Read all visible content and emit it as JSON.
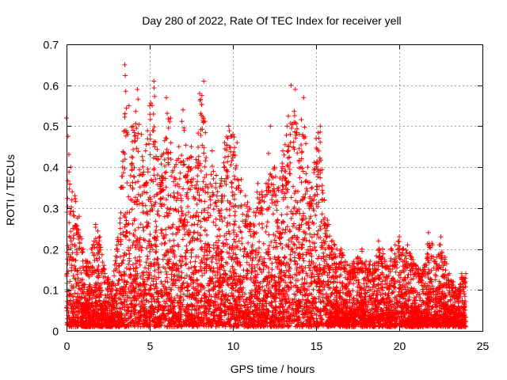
{
  "chart_data": {
    "type": "scatter",
    "title": "Day 280 of 2022, Rate Of TEC Index for receiver yell",
    "xlabel": "GPS time / hours",
    "ylabel": "ROTI / TECUs",
    "xlim": [
      0,
      25
    ],
    "ylim": [
      0,
      0.7
    ],
    "xticks": [
      "0",
      "5",
      "10",
      "15",
      "20",
      "25"
    ],
    "yticks": [
      "0",
      "0.1",
      "0.2",
      "0.3",
      "0.4",
      "0.5",
      "0.6",
      "0.7"
    ],
    "grid": true,
    "marker": "+",
    "color": "#ff0000",
    "envelope": [
      [
        0.0,
        0.52
      ],
      [
        0.25,
        0.4
      ],
      [
        0.5,
        0.33
      ],
      [
        0.75,
        0.28
      ],
      [
        1.0,
        0.2
      ],
      [
        1.25,
        0.17
      ],
      [
        1.5,
        0.2
      ],
      [
        1.75,
        0.26
      ],
      [
        2.0,
        0.23
      ],
      [
        2.25,
        0.16
      ],
      [
        2.5,
        0.13
      ],
      [
        2.75,
        0.12
      ],
      [
        3.0,
        0.2
      ],
      [
        3.25,
        0.35
      ],
      [
        3.5,
        0.65
      ],
      [
        3.75,
        0.55
      ],
      [
        4.0,
        0.5
      ],
      [
        4.25,
        0.59
      ],
      [
        4.5,
        0.48
      ],
      [
        4.75,
        0.44
      ],
      [
        5.0,
        0.55
      ],
      [
        5.25,
        0.61
      ],
      [
        5.5,
        0.42
      ],
      [
        5.75,
        0.43
      ],
      [
        6.0,
        0.57
      ],
      [
        6.25,
        0.52
      ],
      [
        6.5,
        0.4
      ],
      [
        6.75,
        0.45
      ],
      [
        7.0,
        0.54
      ],
      [
        7.25,
        0.42
      ],
      [
        7.5,
        0.45
      ],
      [
        7.75,
        0.4
      ],
      [
        8.0,
        0.58
      ],
      [
        8.25,
        0.61
      ],
      [
        8.5,
        0.35
      ],
      [
        8.75,
        0.44
      ],
      [
        9.0,
        0.38
      ],
      [
        9.25,
        0.36
      ],
      [
        9.5,
        0.46
      ],
      [
        9.75,
        0.5
      ],
      [
        10.0,
        0.48
      ],
      [
        10.25,
        0.46
      ],
      [
        10.5,
        0.37
      ],
      [
        10.75,
        0.33
      ],
      [
        11.0,
        0.3
      ],
      [
        11.25,
        0.29
      ],
      [
        11.5,
        0.36
      ],
      [
        11.75,
        0.34
      ],
      [
        12.0,
        0.36
      ],
      [
        12.25,
        0.5
      ],
      [
        12.5,
        0.4
      ],
      [
        12.75,
        0.35
      ],
      [
        13.0,
        0.44
      ],
      [
        13.25,
        0.5
      ],
      [
        13.5,
        0.6
      ],
      [
        13.75,
        0.59
      ],
      [
        14.0,
        0.48
      ],
      [
        14.25,
        0.57
      ],
      [
        14.5,
        0.4
      ],
      [
        14.75,
        0.35
      ],
      [
        15.0,
        0.47
      ],
      [
        15.25,
        0.5
      ],
      [
        15.5,
        0.32
      ],
      [
        15.75,
        0.26
      ],
      [
        16.0,
        0.22
      ],
      [
        16.25,
        0.2
      ],
      [
        16.5,
        0.2
      ],
      [
        16.75,
        0.17
      ],
      [
        17.0,
        0.16
      ],
      [
        17.25,
        0.17
      ],
      [
        17.5,
        0.18
      ],
      [
        17.75,
        0.2
      ],
      [
        18.0,
        0.17
      ],
      [
        18.25,
        0.17
      ],
      [
        18.5,
        0.16
      ],
      [
        18.75,
        0.22
      ],
      [
        19.0,
        0.2
      ],
      [
        19.25,
        0.16
      ],
      [
        19.5,
        0.2
      ],
      [
        19.75,
        0.21
      ],
      [
        20.0,
        0.23
      ],
      [
        20.25,
        0.2
      ],
      [
        20.5,
        0.21
      ],
      [
        20.75,
        0.18
      ],
      [
        21.0,
        0.16
      ],
      [
        21.25,
        0.15
      ],
      [
        21.5,
        0.16
      ],
      [
        21.75,
        0.24
      ],
      [
        22.0,
        0.21
      ],
      [
        22.25,
        0.18
      ],
      [
        22.5,
        0.23
      ],
      [
        22.75,
        0.18
      ],
      [
        23.0,
        0.14
      ],
      [
        23.25,
        0.12
      ],
      [
        23.5,
        0.1
      ],
      [
        23.75,
        0.14
      ],
      [
        24.0,
        0.14
      ]
    ]
  }
}
